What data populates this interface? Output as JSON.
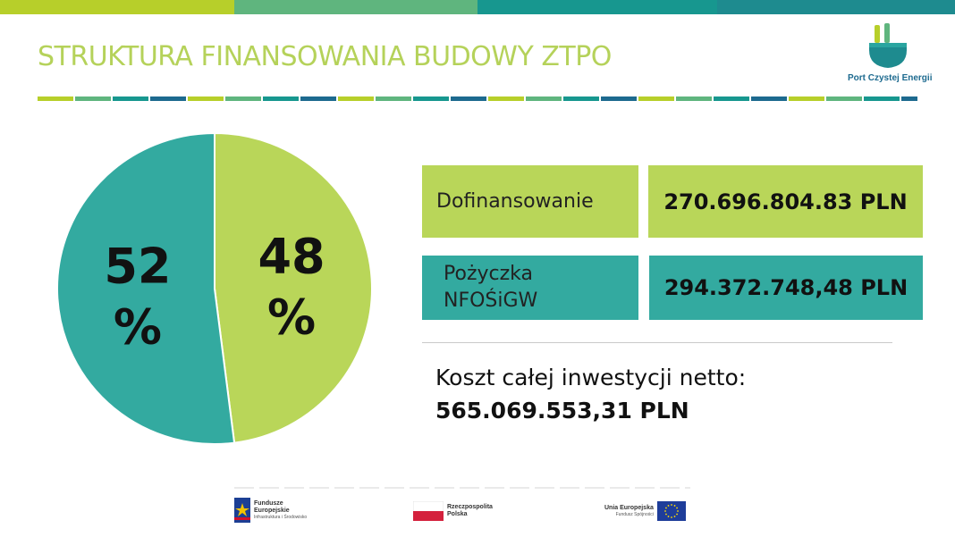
{
  "colors": {
    "title": "#b5d25a",
    "lime": "#b9d659",
    "teal": "#33aaa0",
    "teal_dark": "#128a8f",
    "blue_dark": "#1d6a8f",
    "green_mid": "#63b57b",
    "text": "#111111"
  },
  "slide": {
    "title": "STRUKTURA FINANSOWANIA BUDOWY ZTPO"
  },
  "logo": {
    "text": "Port Czystej Energii",
    "icon": "plug-icon"
  },
  "chart_data": {
    "type": "pie",
    "slices": [
      {
        "label_top": "48",
        "label_bottom": "%",
        "value": 48,
        "color": "#b9d659"
      },
      {
        "label_top": "52",
        "label_bottom": "%",
        "value": 52,
        "color": "#33aaa0"
      }
    ]
  },
  "funding": [
    {
      "label_lines": [
        "Dofinansowanie"
      ],
      "value": "270.696.804.83 PLN",
      "color": "#b9d659"
    },
    {
      "label_lines": [
        "Pożyczka",
        "NFOŚiGW"
      ],
      "value": "294.372.748,48 PLN",
      "color": "#33aaa0"
    }
  ],
  "total": {
    "label": "Koszt całej inwestycji netto:",
    "value": "565.069.553,31 PLN"
  },
  "footer": {
    "fe": {
      "line1": "Fundusze",
      "line2": "Europejskie",
      "line3": "Infrastruktura i Środowisko"
    },
    "rp": {
      "line1": "Rzeczpospolita",
      "line2": "Polska"
    },
    "ue": {
      "line1": "Unia Europejska",
      "line2": "Fundusz Spójności"
    }
  }
}
